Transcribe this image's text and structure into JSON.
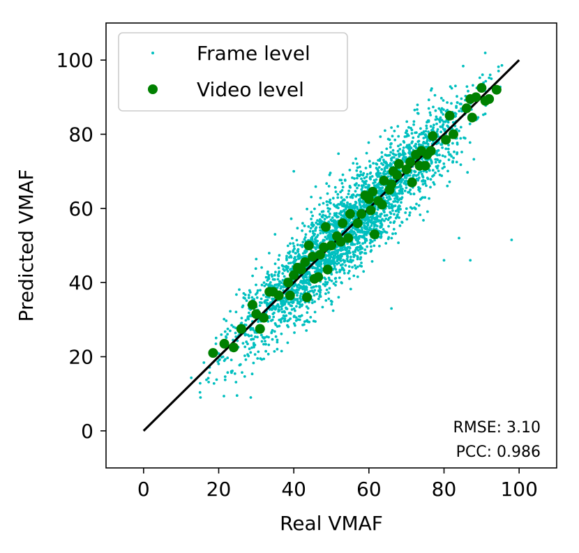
{
  "chart_data": {
    "type": "scatter",
    "title": "",
    "xlabel": "Real VMAF",
    "ylabel": "Predicted VMAF",
    "xlim": [
      -10,
      110
    ],
    "ylim": [
      -10,
      110
    ],
    "xticks": [
      0,
      20,
      40,
      60,
      80,
      100
    ],
    "yticks": [
      0,
      20,
      40,
      60,
      80,
      100
    ],
    "grid": false,
    "legend_position": "top-left",
    "legend": [
      "Frame level",
      "Video level"
    ],
    "series": [
      {
        "name": "Frame level",
        "marker": "dot",
        "color": "#00bfbf",
        "count_approx": 3000,
        "x_range": [
          9,
          100
        ],
        "noise_sd": 6,
        "outliers": [
          [
            84,
            52
          ],
          [
            80,
            46
          ],
          [
            87,
            46
          ],
          [
            98,
            51.5
          ],
          [
            66,
            33
          ],
          [
            45,
            58
          ],
          [
            35,
            53
          ],
          [
            40,
            70
          ]
        ]
      },
      {
        "name": "Video level",
        "marker": "circle",
        "color": "#008000",
        "points": [
          [
            18.5,
            21
          ],
          [
            21.5,
            23.5
          ],
          [
            24,
            22.5
          ],
          [
            26,
            27.5
          ],
          [
            29,
            34
          ],
          [
            30,
            31.5
          ],
          [
            31,
            27.5
          ],
          [
            32,
            30.5
          ],
          [
            33.5,
            37.5
          ],
          [
            34.5,
            37.5
          ],
          [
            36,
            36.5
          ],
          [
            38.5,
            40
          ],
          [
            39,
            36.5
          ],
          [
            40,
            42
          ],
          [
            41,
            44
          ],
          [
            42,
            43.5
          ],
          [
            43,
            45.5
          ],
          [
            43.5,
            36
          ],
          [
            44,
            50
          ],
          [
            45,
            47
          ],
          [
            45.5,
            41
          ],
          [
            46.5,
            41.5
          ],
          [
            47,
            47.5
          ],
          [
            48,
            49.5
          ],
          [
            48.5,
            55
          ],
          [
            49,
            43.5
          ],
          [
            50,
            50
          ],
          [
            51.5,
            52.5
          ],
          [
            52.5,
            51
          ],
          [
            53,
            56
          ],
          [
            54.5,
            52
          ],
          [
            55,
            58.5
          ],
          [
            57,
            56
          ],
          [
            58,
            58.5
          ],
          [
            59,
            63.5
          ],
          [
            60,
            62.5
          ],
          [
            60.5,
            59.5
          ],
          [
            61,
            64.5
          ],
          [
            61.5,
            53
          ],
          [
            62.5,
            62
          ],
          [
            63.5,
            61
          ],
          [
            64,
            67.5
          ],
          [
            65.5,
            65
          ],
          [
            66,
            66.5
          ],
          [
            66.5,
            70
          ],
          [
            67.5,
            69
          ],
          [
            68,
            72
          ],
          [
            70,
            70.5
          ],
          [
            71,
            72.5
          ],
          [
            71.5,
            67
          ],
          [
            72.5,
            74.5
          ],
          [
            73.5,
            71.5
          ],
          [
            74,
            75.5
          ],
          [
            75,
            71.5
          ],
          [
            75.5,
            74.5
          ],
          [
            76.5,
            75.5
          ],
          [
            77,
            79.5
          ],
          [
            80.5,
            78.5
          ],
          [
            81.5,
            85
          ],
          [
            82.5,
            80
          ],
          [
            86,
            87
          ],
          [
            87,
            89.5
          ],
          [
            87.5,
            84.5
          ],
          [
            88.5,
            90
          ],
          [
            90,
            92.5
          ],
          [
            91,
            89
          ],
          [
            92,
            89.5
          ],
          [
            94,
            92
          ]
        ]
      },
      {
        "name": "",
        "type": "line",
        "color": "#000000",
        "points": [
          [
            0,
            0
          ],
          [
            100,
            100
          ]
        ]
      }
    ],
    "annotations": [
      "RMSE: 3.10",
      "PCC: 0.986"
    ]
  }
}
